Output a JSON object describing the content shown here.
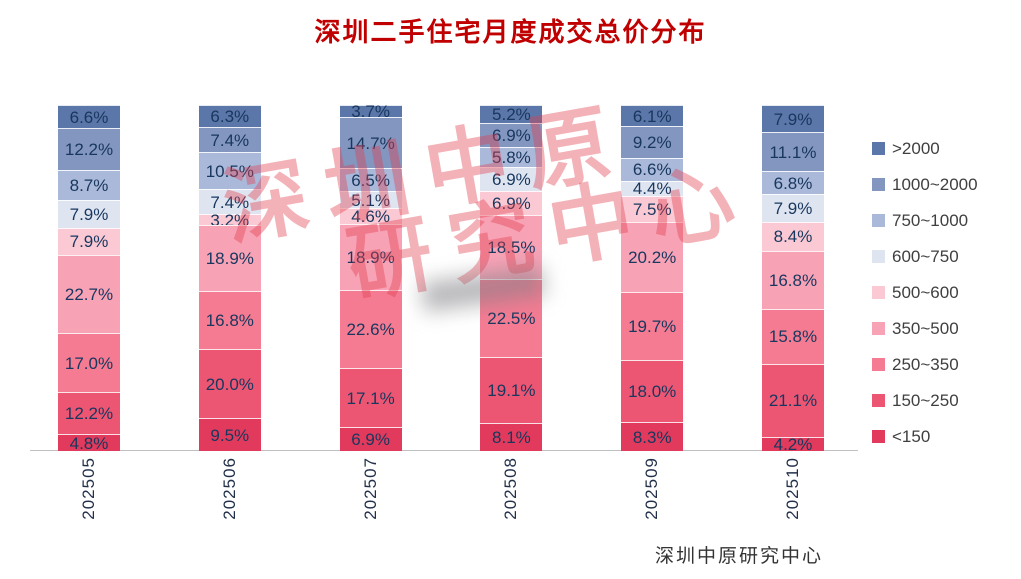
{
  "title": "深圳二手住宅月度成交总价分布",
  "footer": "深圳中原研究中心",
  "watermark": {
    "line1": "深圳中原",
    "line2": "研究中心"
  },
  "chart_data": {
    "type": "bar",
    "stacked": true,
    "orientation": "vertical",
    "title": "深圳二手住宅月度成交总价分布",
    "xlabel": "",
    "ylabel": "",
    "ylim": [
      0,
      100
    ],
    "value_suffix": "%",
    "legend_position": "right",
    "categories": [
      "202505",
      "202506",
      "202507",
      "202508",
      "202509",
      "202510"
    ],
    "series": [
      {
        "name": "<150",
        "color": "#e23a5c",
        "values": [
          4.8,
          9.5,
          6.9,
          8.1,
          8.3,
          4.2
        ]
      },
      {
        "name": "150~250",
        "color": "#ec5673",
        "values": [
          12.2,
          20.0,
          17.1,
          19.1,
          18.0,
          21.1
        ]
      },
      {
        "name": "250~350",
        "color": "#f47b92",
        "values": [
          17.0,
          16.8,
          22.6,
          22.5,
          19.7,
          15.8
        ]
      },
      {
        "name": "350~500",
        "color": "#f8a2b6",
        "values": [
          22.7,
          18.9,
          18.9,
          18.5,
          20.2,
          16.8
        ]
      },
      {
        "name": "500~600",
        "color": "#fac9d3",
        "values": [
          7.9,
          3.2,
          4.6,
          6.9,
          7.5,
          8.4
        ]
      },
      {
        "name": "600~750",
        "color": "#dfe4f1",
        "values": [
          7.9,
          7.4,
          5.1,
          6.9,
          4.4,
          7.9
        ]
      },
      {
        "name": "750~1000",
        "color": "#aab9da",
        "values": [
          8.7,
          10.5,
          6.5,
          5.8,
          6.6,
          6.8
        ]
      },
      {
        "name": "1000~2000",
        "color": "#8396c0",
        "values": [
          12.2,
          7.4,
          14.7,
          6.9,
          9.2,
          11.1
        ]
      },
      {
        "name": ">2000",
        "color": "#5b76a8",
        "values": [
          6.6,
          6.3,
          3.7,
          5.2,
          6.1,
          7.9
        ]
      }
    ]
  }
}
